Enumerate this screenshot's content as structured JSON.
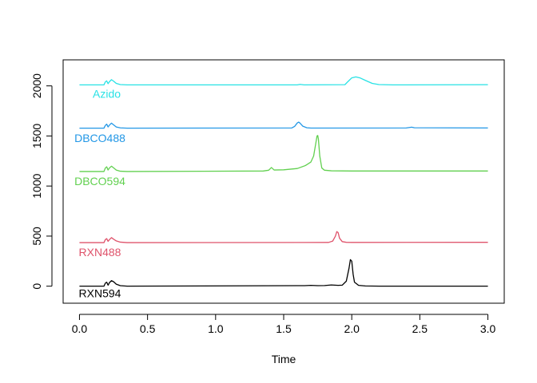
{
  "chart_data": {
    "type": "line",
    "title": "",
    "xlabel": "Time",
    "ylabel": "",
    "xlim": [
      -0.12,
      3.12
    ],
    "ylim": [
      -170,
      2260
    ],
    "x_ticks": [
      0.0,
      0.5,
      1.0,
      1.5,
      2.0,
      2.5,
      3.0
    ],
    "x_tick_labels": [
      "0.0",
      "0.5",
      "1.0",
      "1.5",
      "2.0",
      "2.5",
      "3.0"
    ],
    "y_ticks": [
      0,
      500,
      1000,
      1500,
      2000
    ],
    "y_tick_labels": [
      "0",
      "500",
      "1000",
      "1500",
      "2000"
    ],
    "grid": false,
    "legend": "labels placed under each trace",
    "series": [
      {
        "name": "RXN594",
        "color": "#000000",
        "label_anchor": [
          0.15,
          -70
        ],
        "points": [
          [
            0,
            0
          ],
          [
            0.18,
            0
          ],
          [
            0.19,
            30
          ],
          [
            0.2,
            40
          ],
          [
            0.21,
            10
          ],
          [
            0.22,
            35
          ],
          [
            0.235,
            55
          ],
          [
            0.25,
            45
          ],
          [
            0.27,
            20
          ],
          [
            0.3,
            5
          ],
          [
            0.35,
            0
          ],
          [
            1.6,
            5
          ],
          [
            1.65,
            5
          ],
          [
            1.7,
            8
          ],
          [
            1.75,
            5
          ],
          [
            1.8,
            6
          ],
          [
            1.85,
            12
          ],
          [
            1.9,
            8
          ],
          [
            1.93,
            10
          ],
          [
            1.96,
            50
          ],
          [
            1.98,
            180
          ],
          [
            1.99,
            265
          ],
          [
            2.0,
            250
          ],
          [
            2.01,
            120
          ],
          [
            2.02,
            40
          ],
          [
            2.05,
            8
          ],
          [
            2.1,
            2
          ],
          [
            2.2,
            0
          ],
          [
            3.0,
            0
          ]
        ]
      },
      {
        "name": "RXN488",
        "color": "#DF536B",
        "label_anchor": [
          0.15,
          340
        ],
        "points": [
          [
            0,
            435
          ],
          [
            0.18,
            435
          ],
          [
            0.19,
            465
          ],
          [
            0.2,
            475
          ],
          [
            0.21,
            448
          ],
          [
            0.22,
            465
          ],
          [
            0.235,
            485
          ],
          [
            0.25,
            470
          ],
          [
            0.27,
            452
          ],
          [
            0.3,
            440
          ],
          [
            0.35,
            435
          ],
          [
            1.83,
            437
          ],
          [
            1.86,
            450
          ],
          [
            1.88,
            500
          ],
          [
            1.89,
            545
          ],
          [
            1.9,
            535
          ],
          [
            1.91,
            480
          ],
          [
            1.93,
            445
          ],
          [
            1.96,
            438
          ],
          [
            2.0,
            437
          ],
          [
            3.0,
            438
          ]
        ]
      },
      {
        "name": "DBCO594",
        "color": "#61D04F",
        "label_anchor": [
          0.15,
          1050
        ],
        "points": [
          [
            0,
            1145
          ],
          [
            0.18,
            1145
          ],
          [
            0.19,
            1180
          ],
          [
            0.2,
            1192
          ],
          [
            0.21,
            1160
          ],
          [
            0.22,
            1180
          ],
          [
            0.235,
            1198
          ],
          [
            0.25,
            1182
          ],
          [
            0.27,
            1160
          ],
          [
            0.3,
            1148
          ],
          [
            0.35,
            1145
          ],
          [
            1.35,
            1150
          ],
          [
            1.39,
            1158
          ],
          [
            1.41,
            1185
          ],
          [
            1.43,
            1160
          ],
          [
            1.5,
            1162
          ],
          [
            1.6,
            1175
          ],
          [
            1.66,
            1205
          ],
          [
            1.7,
            1240
          ],
          [
            1.72,
            1300
          ],
          [
            1.735,
            1420
          ],
          [
            1.745,
            1500
          ],
          [
            1.75,
            1505
          ],
          [
            1.755,
            1470
          ],
          [
            1.765,
            1300
          ],
          [
            1.78,
            1180
          ],
          [
            1.8,
            1158
          ],
          [
            1.85,
            1152
          ],
          [
            2.0,
            1150
          ],
          [
            3.0,
            1150
          ]
        ]
      },
      {
        "name": "DBCO488",
        "color": "#2297E6",
        "label_anchor": [
          0.15,
          1480
        ],
        "points": [
          [
            0,
            1578
          ],
          [
            0.18,
            1578
          ],
          [
            0.19,
            1605
          ],
          [
            0.2,
            1618
          ],
          [
            0.21,
            1590
          ],
          [
            0.22,
            1608
          ],
          [
            0.235,
            1628
          ],
          [
            0.25,
            1612
          ],
          [
            0.27,
            1590
          ],
          [
            0.3,
            1581
          ],
          [
            0.35,
            1578
          ],
          [
            1.56,
            1580
          ],
          [
            1.58,
            1595
          ],
          [
            1.6,
            1630
          ],
          [
            1.61,
            1638
          ],
          [
            1.62,
            1628
          ],
          [
            1.64,
            1598
          ],
          [
            1.67,
            1582
          ],
          [
            1.7,
            1579
          ],
          [
            2.4,
            1580
          ],
          [
            2.44,
            1588
          ],
          [
            2.46,
            1582
          ],
          [
            3.0,
            1580
          ]
        ]
      },
      {
        "name": "Azido",
        "color": "#28E2E5",
        "label_anchor": [
          0.2,
          1920
        ],
        "points": [
          [
            0,
            2010
          ],
          [
            0.18,
            2010
          ],
          [
            0.19,
            2040
          ],
          [
            0.2,
            2050
          ],
          [
            0.21,
            2022
          ],
          [
            0.22,
            2042
          ],
          [
            0.235,
            2062
          ],
          [
            0.25,
            2048
          ],
          [
            0.27,
            2025
          ],
          [
            0.3,
            2013
          ],
          [
            0.35,
            2010
          ],
          [
            1.6,
            2010
          ],
          [
            1.62,
            2015
          ],
          [
            1.65,
            2010
          ],
          [
            1.95,
            2012
          ],
          [
            1.97,
            2040
          ],
          [
            2.0,
            2080
          ],
          [
            2.03,
            2090
          ],
          [
            2.06,
            2080
          ],
          [
            2.1,
            2055
          ],
          [
            2.15,
            2025
          ],
          [
            2.2,
            2013
          ],
          [
            2.3,
            2010
          ],
          [
            3.0,
            2012
          ]
        ]
      }
    ]
  }
}
